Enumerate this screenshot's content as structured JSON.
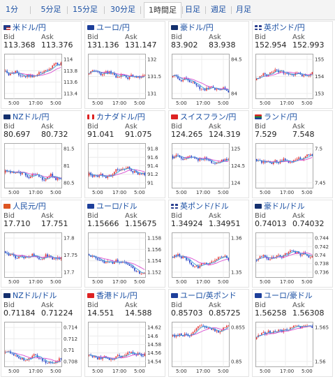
{
  "tabs": [
    "1分足",
    "5分足",
    "15分足",
    "30分足",
    "1時間足",
    "日足",
    "週足",
    "月足"
  ],
  "active_tab": "1時間足",
  "bid_label": "Bid",
  "ask_label": "Ask",
  "colors": {
    "up": "#e23b3b",
    "down": "#2a44c8",
    "ma": "#d94fd0",
    "ma2": "#3aa0d8",
    "link": "#1a4fa3"
  },
  "pairs": [
    {
      "name": "米ドル/円",
      "flag": "us",
      "bid": "113.368",
      "ask": "113.376",
      "yticks": [
        "114",
        "113.8",
        "113.6",
        "113.4"
      ],
      "xticks": [
        "5:00",
        "17:00",
        "5:00"
      ]
    },
    {
      "name": "ユーロ/円",
      "flag": "eu",
      "bid": "131.136",
      "ask": "131.147",
      "yticks": [
        "132",
        "131.5",
        "131"
      ],
      "xticks": [
        "5:00",
        "17:00",
        "5:00"
      ]
    },
    {
      "name": "豪ドル/円",
      "flag": "au",
      "bid": "83.902",
      "ask": "83.938",
      "yticks": [
        "84.5",
        "84"
      ],
      "xticks": [
        "5:00",
        "17:00",
        "5:00"
      ]
    },
    {
      "name": "英ポンド/円",
      "flag": "gb",
      "bid": "152.954",
      "ask": "152.993",
      "yticks": [
        "155",
        "154",
        "153"
      ],
      "xticks": [
        "5:00",
        "17:00",
        "5:00"
      ]
    },
    {
      "name": "NZドル/円",
      "flag": "nz",
      "bid": "80.697",
      "ask": "80.732",
      "yticks": [
        "81.5",
        "81",
        "80.5"
      ],
      "xticks": [
        "5:00",
        "17:00",
        "5:00"
      ]
    },
    {
      "name": "カナダドル/円",
      "flag": "ca",
      "bid": "91.041",
      "ask": "91.075",
      "yticks": [
        "91.8",
        "91.6",
        "91.4",
        "91.2",
        "91"
      ],
      "xticks": [
        "5:00",
        "17:00",
        "5:00"
      ]
    },
    {
      "name": "スイスフラン/円",
      "flag": "ch",
      "bid": "124.265",
      "ask": "124.319",
      "yticks": [
        "125",
        "124.5",
        "124"
      ],
      "xticks": [
        "5:00",
        "17:00",
        "5:00"
      ]
    },
    {
      "name": "ランド/円",
      "flag": "za",
      "bid": "7.529",
      "ask": "7.548",
      "yticks": [
        "7.5",
        "7.45"
      ],
      "xticks": [
        "5:00",
        "17:00",
        "5:00"
      ]
    },
    {
      "name": "人民元/円",
      "flag": "cn",
      "bid": "17.710",
      "ask": "17.751",
      "yticks": [
        "17.8",
        "17.75",
        "17.7"
      ],
      "xticks": [
        "5:00",
        "17:00",
        "5:00"
      ]
    },
    {
      "name": "ユーロ/ドル",
      "flag": "eu",
      "bid": "1.15666",
      "ask": "1.15675",
      "yticks": [
        "1.158",
        "1.156",
        "1.154",
        "1.152"
      ],
      "xticks": [
        "5:00",
        "17:00",
        "5:00"
      ]
    },
    {
      "name": "英ポンド/ドル",
      "flag": "gb",
      "bid": "1.34924",
      "ask": "1.34951",
      "yticks": [
        "1.36",
        "1.35"
      ],
      "xticks": [
        "5:00",
        "17:00",
        "5:00"
      ]
    },
    {
      "name": "豪ドル/ドル",
      "flag": "au",
      "bid": "0.74013",
      "ask": "0.74032",
      "yticks": [
        "0.744",
        "0.742",
        "0.74",
        "0.738",
        "0.736"
      ],
      "xticks": [
        "5:00",
        "17:00",
        "5:00"
      ]
    },
    {
      "name": "NZドル/ドル",
      "flag": "nz",
      "bid": "0.71184",
      "ask": "0.71224",
      "yticks": [
        "0.714",
        "0.712",
        "0.71",
        "0.708"
      ],
      "xticks": [
        "5:00",
        "17:00",
        "5:00"
      ]
    },
    {
      "name": "香港ドル/円",
      "flag": "hk",
      "bid": "14.551",
      "ask": "14.588",
      "yticks": [
        "14.62",
        "14.6",
        "14.58",
        "14.56",
        "14.54"
      ],
      "xticks": [
        "5:00",
        "17:00",
        "5:00"
      ]
    },
    {
      "name": "ユーロ/英ポンド",
      "flag": "eu",
      "bid": "0.85703",
      "ask": "0.85725",
      "yticks": [
        "0.855",
        "0.85"
      ],
      "xticks": [
        "5:00",
        "17:00",
        "5:00"
      ]
    },
    {
      "name": "ユーロ/豪ドル",
      "flag": "eu",
      "bid": "1.56258",
      "ask": "1.56308",
      "yticks": [
        "1.565",
        "1.56"
      ],
      "xticks": [
        "5:00",
        "17:00",
        "5:00"
      ]
    }
  ]
}
